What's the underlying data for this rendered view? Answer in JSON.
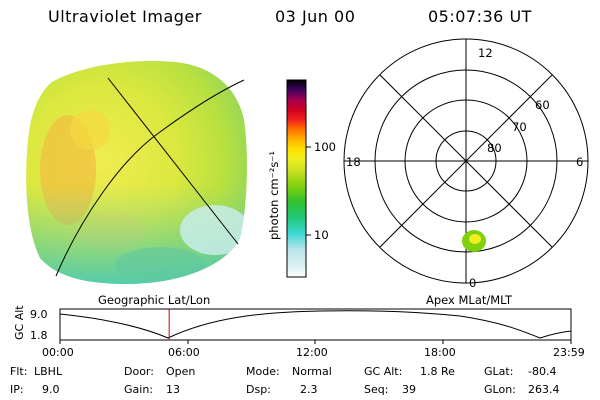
{
  "header": {
    "instrument": "Ultraviolet Imager",
    "date": "03 Jun 00",
    "time": "05:07:36 UT"
  },
  "colorbar": {
    "unit_label": "photon cm⁻²s⁻¹",
    "ticks": [
      "100",
      "10"
    ],
    "tick_values": [
      100,
      10
    ],
    "range": [
      2.5,
      320
    ],
    "scale": "log",
    "colors": [
      "#ffffff",
      "#d8f0f0",
      "#b9e6ea",
      "#3fd6d6",
      "#22c87a",
      "#30c030",
      "#80d010",
      "#c8e020",
      "#f0f020",
      "#ffe000",
      "#ffb000",
      "#ff7000",
      "#f02020",
      "#d00020",
      "#a00050",
      "#400060",
      "#000000"
    ]
  },
  "polar_plot": {
    "mlt_labels": {
      "top": "12",
      "left": "18",
      "right": "6",
      "bottom": "0"
    },
    "lat_labels": [
      "60",
      "70",
      "80"
    ],
    "lat_rings": [
      60,
      70,
      80
    ],
    "spot_color": "#80d010"
  },
  "panel_labels": {
    "left": "Geographic Lat/Lon",
    "right": "Apex MLat/MLT"
  },
  "timeline": {
    "y_axis_label": "GC Alt",
    "y_ticks": [
      "9.0",
      "1.8"
    ],
    "x_ticks": [
      "00:00",
      "06:00",
      "12:00",
      "18:00",
      "23:59"
    ],
    "current_time_hours": 5.127,
    "marker_color": "#cc0000"
  },
  "status": {
    "filter": {
      "label": "Flt:",
      "value": "LBHL"
    },
    "ip": {
      "label": "IP:",
      "value": "9.0"
    },
    "door": {
      "label": "Door:",
      "value": "Open"
    },
    "gain": {
      "label": "Gain:",
      "value": "13"
    },
    "mode": {
      "label": "Mode:",
      "value": "Normal"
    },
    "dsp": {
      "label": "Dsp:",
      "value": "2.3"
    },
    "gc_alt": {
      "label": "GC Alt:",
      "value": "1.8 Re"
    },
    "seq": {
      "label": "Seq:",
      "value": "39"
    },
    "glat": {
      "label": "GLat:",
      "value": "-80.4"
    },
    "glon": {
      "label": "GLon:",
      "value": "263.4"
    }
  }
}
